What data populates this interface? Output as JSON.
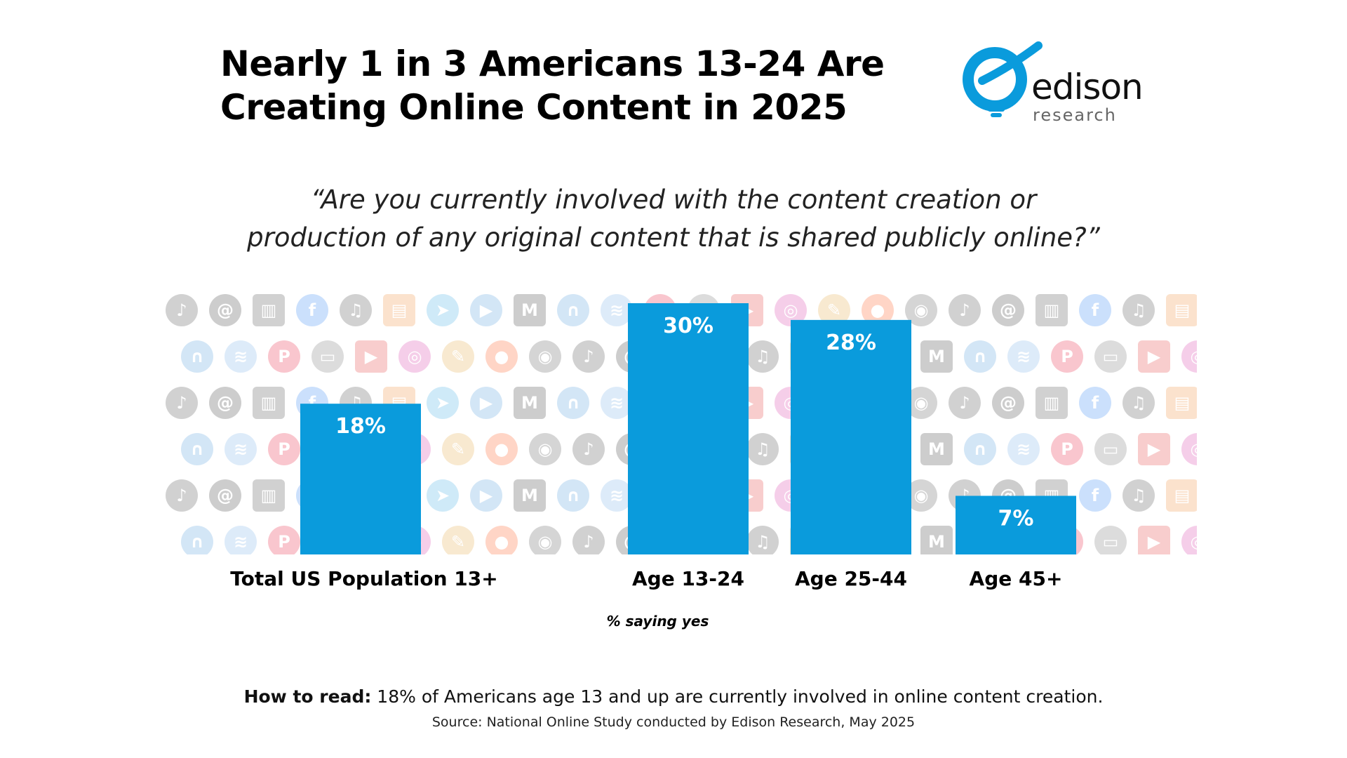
{
  "header": {
    "title_line1": "Nearly 1 in 3 Americans 13-24 Are",
    "title_line2": "Creating Online Content in 2025"
  },
  "logo": {
    "word": "edison",
    "sub": "research",
    "accent": "#0A9BDC"
  },
  "question": {
    "line1": "“Are you currently involved with the content creation or",
    "line2": "production of any original content that is shared publicly online?”"
  },
  "chart_data": {
    "type": "bar",
    "categories": [
      "Total US Population 13+",
      "Age 13-24",
      "Age 25-44",
      "Age 45+"
    ],
    "values": [
      18,
      30,
      28,
      7
    ],
    "value_labels": [
      "18%",
      "30%",
      "28%",
      "7%"
    ],
    "ylim": [
      0,
      30
    ],
    "xlabel": "% saying yes",
    "bar_color": "#0A9BDC",
    "grid": false
  },
  "background_icons": [
    "tiktok-icon",
    "youtube-icon",
    "medium-icon",
    "facebook-icon",
    "reddit-icon",
    "pinterest-icon",
    "telegram-icon",
    "threads-icon",
    "instagram-icon",
    "headphones-icon",
    "music-note-icon",
    "camera-icon",
    "laptop-icon",
    "play-icon",
    "piano-icon",
    "brush-icon",
    "audio-wave-icon",
    "bookmark-icon"
  ],
  "footer": {
    "howto_label": "How to read:",
    "howto_text": " 18% of Americans age 13 and up are currently involved in online content creation.",
    "source": "Source: National Online Study conducted by Edison Research, May 2025"
  }
}
